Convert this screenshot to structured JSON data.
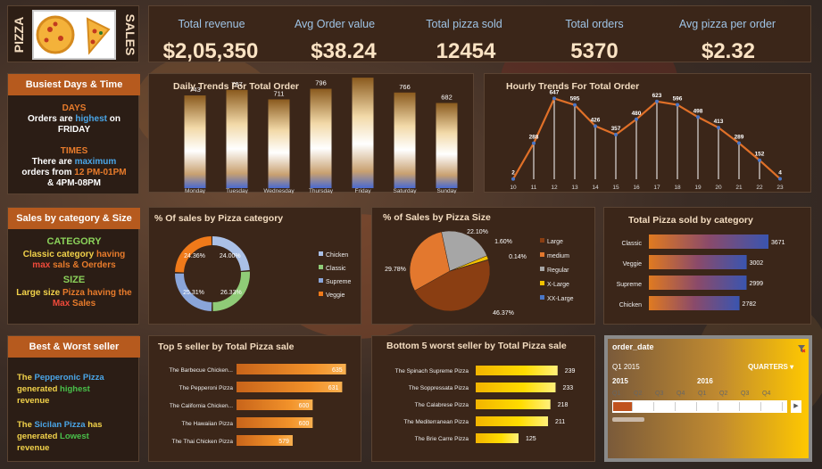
{
  "brand": {
    "left": "PIZZA",
    "right": "SALES"
  },
  "kpis": [
    {
      "label": "Total revenue",
      "value": "$2,05,350"
    },
    {
      "label": "Avg Order value",
      "value": "$38.24"
    },
    {
      "label": "Total pizza sold",
      "value": "12454"
    },
    {
      "label": "Total orders",
      "value": "5370"
    },
    {
      "label": "Avg pizza per order",
      "value": "$2.32"
    }
  ],
  "busiest": {
    "header": "Busiest Days & Time",
    "days_title": "DAYS",
    "days_l1a": "Orders are ",
    "days_l1b": "highest",
    "days_l1c": " on",
    "days_l2": "FRIDAY",
    "times_title": "TIMES",
    "times_l1a": "There are ",
    "times_l1b": "maximum",
    "times_l2a": "orders from ",
    "times_l2b": "12 PM-01PM",
    "times_l3": "& 4PM-08PM"
  },
  "category_size": {
    "header": "Sales by category & Size",
    "cat_title": "CATEGORY",
    "cat_l1a": "Classic category",
    "cat_l1b": " having",
    "cat_l2a": "max",
    "cat_l2b": " sals & Oerders",
    "size_title": "SIZE",
    "size_l1a": "Large size",
    "size_l1b": " Pizza having the",
    "size_l2a": "Max",
    "size_l2b": " Sales"
  },
  "best_worst": {
    "header": "Best & Worst seller",
    "b1a": "The ",
    "b1b": "Pepperonic Pizza",
    "b2a": "generated ",
    "b2b": "highest",
    "b3": "revenue",
    "w1a": "The ",
    "w1b": "Sicilan Pizza",
    "w1c": " has",
    "w2a": "generated ",
    "w2b": "Lowest",
    "w3": "revenue"
  },
  "chart_data": [
    {
      "id": "daily",
      "type": "bar",
      "title": "Daily Trends For Total Order",
      "categories": [
        "Monday",
        "Tuesday",
        "Wednesday",
        "Thursday",
        "Friday",
        "Saturday",
        "Sunday"
      ],
      "values": [
        743,
        787,
        711,
        796,
        885,
        766,
        682
      ],
      "ylim": [
        0,
        1000
      ]
    },
    {
      "id": "hourly",
      "type": "line",
      "title": "Hourly Trends For Total Order",
      "x": [
        "10",
        "11",
        "12",
        "13",
        "14",
        "15",
        "16",
        "17",
        "18",
        "19",
        "20",
        "21",
        "22",
        "23"
      ],
      "values": [
        2,
        288,
        647,
        595,
        426,
        357,
        480,
        623,
        596,
        498,
        413,
        289,
        152,
        4
      ],
      "ylim": [
        0,
        700
      ]
    },
    {
      "id": "cat_pct",
      "type": "pie",
      "title": "% Of sales by Pizza category",
      "labels": [
        "Chicken",
        "Classic",
        "Supreme",
        "Veggie"
      ],
      "values": [
        24.0,
        26.33,
        25.31,
        24.36
      ],
      "value_labels": [
        "24.00%",
        "26.33%",
        "25.31%",
        "24.36%"
      ],
      "colors": [
        "#aac0e6",
        "#8fcb77",
        "#8aa5d9",
        "#f07a1a"
      ]
    },
    {
      "id": "size_pct",
      "type": "pie",
      "title": "% of Sales by Pizza Size",
      "labels": [
        "Large",
        "medium",
        "Regular",
        "X-Large",
        "XX-Large"
      ],
      "values": [
        46.37,
        29.78,
        22.1,
        1.6,
        0.14
      ],
      "value_labels": [
        "46.37%",
        "29.78%",
        "22.10%",
        "1.60%",
        "0.14%"
      ],
      "colors": [
        "#8a3e12",
        "#e3782e",
        "#a6a6a6",
        "#f2c200",
        "#4a76c6"
      ]
    },
    {
      "id": "cat_sold",
      "type": "bar",
      "orientation": "horizontal",
      "title": "Total Pizza sold by category",
      "categories": [
        "Classic",
        "Veggie",
        "Supreme",
        "Chicken"
      ],
      "values": [
        3671,
        3002,
        2999,
        2782
      ],
      "xlim": [
        0,
        3671
      ]
    },
    {
      "id": "top5",
      "type": "bar",
      "orientation": "horizontal",
      "title": "Top 5 seller by Total Pizza sale",
      "categories": [
        "The Barbecue Chicken...",
        "The Pepperoni Pizza",
        "The California Chicken...",
        "The Hawaiian Pizza",
        "The Thai Chicken Pizza"
      ],
      "values": [
        635,
        631,
        600,
        600,
        579
      ],
      "value_labels": [
        "635",
        "631",
        "600",
        "600",
        "579"
      ],
      "xlim": [
        520,
        640
      ]
    },
    {
      "id": "bottom5",
      "type": "bar",
      "orientation": "horizontal",
      "title": "Bottom 5 worst  seller by Total Pizza sale",
      "categories": [
        "The Spinach Supreme Pizza",
        "The Soppressata Pizza",
        "The Calabrese Pizza",
        "The Mediterranean Pizza",
        "The Brie Carre Pizza"
      ],
      "values": [
        239,
        233,
        218,
        211,
        125
      ],
      "xlim": [
        0,
        250
      ]
    }
  ],
  "slicer": {
    "title": "order_date",
    "period": "Q1 2015",
    "level": "QUARTERS",
    "years": [
      "2015",
      "2016"
    ],
    "quarters": [
      "Q1",
      "Q2",
      "Q3",
      "Q4",
      "Q1",
      "Q2",
      "Q3",
      "Q4"
    ],
    "selected_index": 0
  }
}
